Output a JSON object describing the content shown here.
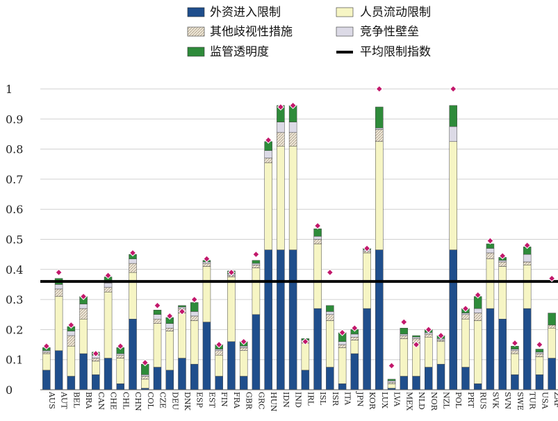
{
  "chart_data": {
    "type": "bar",
    "stacked": true,
    "title": "",
    "xlabel": "",
    "ylabel": "",
    "ylim": [
      0,
      1
    ],
    "yticks": [
      0,
      0.1,
      0.2,
      0.3,
      0.4,
      0.5,
      0.6,
      0.7,
      0.8,
      0.9,
      1
    ],
    "ytick_labels": [
      "0",
      "0.1",
      "0.2",
      "0.3",
      "0.4",
      "0.5",
      "0.6",
      "0.7",
      "0.8",
      "0.9",
      "1"
    ],
    "grid": true,
    "legend_position": "top",
    "categories": [
      "AUS",
      "AUT",
      "BEL",
      "BRA",
      "CAN",
      "CHE",
      "CHL",
      "CHN",
      "COL",
      "CZE",
      "DEU",
      "DNK",
      "ESP",
      "EST",
      "FIN",
      "FRA",
      "GBR",
      "GRC",
      "HUN",
      "IDN",
      "IND",
      "IRL",
      "ISL",
      "ISR",
      "ITA",
      "JPN",
      "KOR",
      "LUX",
      "LVA",
      "MEX",
      "NLD",
      "NOR",
      "NZL",
      "POL",
      "PRT",
      "RUS",
      "SVK",
      "SVN",
      "SWE",
      "TUR",
      "USA",
      "ZAF"
    ],
    "series": [
      {
        "name": "外资进入限制",
        "color": "#1f4e8c",
        "pattern": "solid",
        "values": [
          0.065,
          0.13,
          0.045,
          0.12,
          0.05,
          0.105,
          0.02,
          0.235,
          0.005,
          0.075,
          0.065,
          0.105,
          0.085,
          0.225,
          0.045,
          0.16,
          0.045,
          0.25,
          0.465,
          0.465,
          0.465,
          0.065,
          0.27,
          0.075,
          0.02,
          0.12,
          0.27,
          0.465,
          0.005,
          0.045,
          0.045,
          0.075,
          0.085,
          0.465,
          0.075,
          0.02,
          0.27,
          0.235,
          0.05,
          0.27,
          0.05,
          0.105
        ]
      },
      {
        "name": "人员流动限制",
        "color": "#f6f5c4",
        "pattern": "solid",
        "values": [
          0.055,
          0.18,
          0.1,
          0.115,
          0.045,
          0.22,
          0.085,
          0.155,
          0.03,
          0.145,
          0.13,
          0.15,
          0.145,
          0.185,
          0.07,
          0.215,
          0.085,
          0.155,
          0.29,
          0.345,
          0.345,
          0.09,
          0.215,
          0.155,
          0.12,
          0.045,
          0.185,
          0.36,
          0.015,
          0.125,
          0.11,
          0.1,
          0.075,
          0.36,
          0.16,
          0.21,
          0.165,
          0.175,
          0.07,
          0.145,
          0.06,
          0.1
        ]
      },
      {
        "name": "其他歧视性措施",
        "color": "#efe8d8",
        "pattern": "hatch",
        "values": [
          0.005,
          0.025,
          0.035,
          0.035,
          0.01,
          0.015,
          0.01,
          0.03,
          0.01,
          0.015,
          0.01,
          0.015,
          0.015,
          0.01,
          0.015,
          0.005,
          0.01,
          0.01,
          0.015,
          0.045,
          0.045,
          0.005,
          0.015,
          0.02,
          0.01,
          0.01,
          0.005,
          0.04,
          0.005,
          0.01,
          0.015,
          0.01,
          0.005,
          0.0,
          0.015,
          0.025,
          0.02,
          0.015,
          0.01,
          0.01,
          0.01,
          0.01
        ]
      },
      {
        "name": "竞争性壁垒",
        "color": "#dcdae6",
        "pattern": "solid",
        "values": [
          0.005,
          0.015,
          0.015,
          0.015,
          0.01,
          0.015,
          0.005,
          0.015,
          0.005,
          0.015,
          0.015,
          0.005,
          0.015,
          0.005,
          0.005,
          0.005,
          0.005,
          0.005,
          0.025,
          0.035,
          0.035,
          0.005,
          0.01,
          0.01,
          0.01,
          0.01,
          0.005,
          0.005,
          0.005,
          0.005,
          0.005,
          0.005,
          0.005,
          0.05,
          0.005,
          0.015,
          0.015,
          0.005,
          0.005,
          0.025,
          0.005,
          0.0
        ]
      },
      {
        "name": "监管透明度",
        "color": "#2e8b3a",
        "pattern": "solid",
        "values": [
          0.01,
          0.02,
          0.015,
          0.025,
          0.01,
          0.02,
          0.02,
          0.015,
          0.035,
          0.015,
          0.02,
          0.005,
          0.03,
          0.005,
          0.015,
          0.01,
          0.015,
          0.01,
          0.03,
          0.055,
          0.055,
          0.005,
          0.025,
          0.02,
          0.03,
          0.015,
          0.005,
          0.07,
          0.005,
          0.02,
          0.005,
          0.01,
          0.01,
          0.07,
          0.015,
          0.04,
          0.015,
          0.01,
          0.01,
          0.025,
          0.01,
          0.04
        ]
      }
    ],
    "average": {
      "name": "平均限制指数",
      "value": 0.36,
      "color": "#000000"
    },
    "markers": [
      0.145,
      0.39,
      0.215,
      0.31,
      0.12,
      0.38,
      0.145,
      0.455,
      0.09,
      0.28,
      0.245,
      0.26,
      0.3,
      0.435,
      0.15,
      0.39,
      0.16,
      0.45,
      0.83,
      0.94,
      0.945,
      0.16,
      0.545,
      0.39,
      0.19,
      0.205,
      0.47,
      1.0,
      0.08,
      0.225,
      0.15,
      0.2,
      0.18,
      1.0,
      0.27,
      0.315,
      0.495,
      0.445,
      0.155,
      0.48,
      0.15,
      0.37
    ],
    "marker_color": "#c2186b"
  }
}
